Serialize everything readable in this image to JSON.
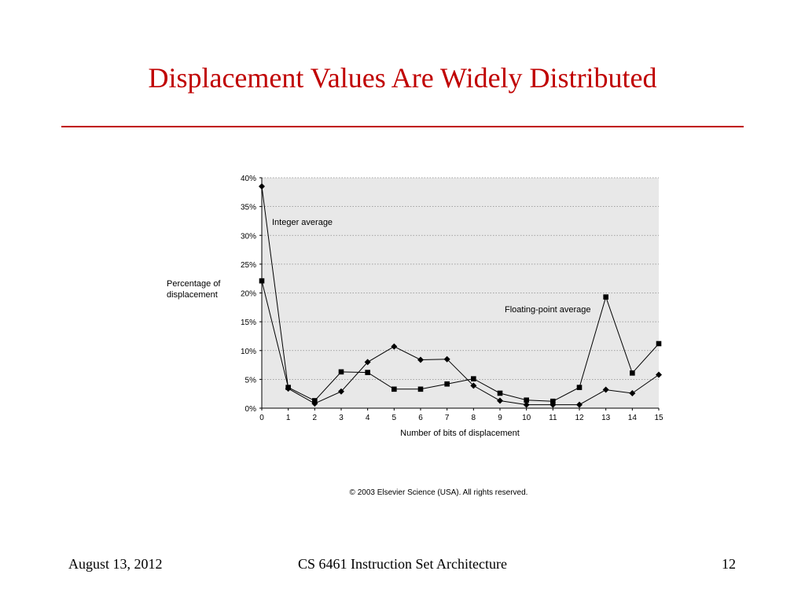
{
  "slide": {
    "title": "Displacement Values Are Widely Distributed",
    "footer_date": "August 13, 2012",
    "footer_course": "CS 6461 Instruction Set Architecture",
    "footer_page": "12",
    "accent_color": "#c00000"
  },
  "chart_data": {
    "type": "line",
    "xlabel": "Number of bits of displacement",
    "ylabel": "Percentage of displacement",
    "x": [
      0,
      1,
      2,
      3,
      4,
      5,
      6,
      7,
      8,
      9,
      10,
      11,
      12,
      13,
      14,
      15
    ],
    "x_tick_labels": [
      "0",
      "1",
      "2",
      "3",
      "4",
      "5",
      "6",
      "7",
      "8",
      "9",
      "10",
      "11",
      "12",
      "13",
      "14",
      "15"
    ],
    "ylim": [
      0,
      40
    ],
    "y_tick_labels": [
      "0%",
      "5%",
      "10%",
      "15%",
      "20%",
      "25%",
      "30%",
      "35%",
      "40%"
    ],
    "grid": true,
    "plot_background": "#e8e8e8",
    "series": [
      {
        "name": "Integer average",
        "marker": "diamond",
        "values": [
          38.5,
          3.4,
          0.8,
          2.9,
          8.0,
          10.7,
          8.4,
          8.5,
          3.9,
          1.3,
          0.6,
          0.6,
          0.6,
          3.2,
          2.6,
          5.8
        ]
      },
      {
        "name": "Floating-point average",
        "marker": "square",
        "values": [
          22.1,
          3.6,
          1.3,
          6.3,
          6.2,
          3.3,
          3.3,
          4.2,
          5.1,
          2.6,
          1.4,
          1.2,
          3.6,
          19.3,
          6.1,
          11.2
        ]
      }
    ],
    "copyright": "© 2003 Elsevier Science (USA). All rights reserved."
  }
}
